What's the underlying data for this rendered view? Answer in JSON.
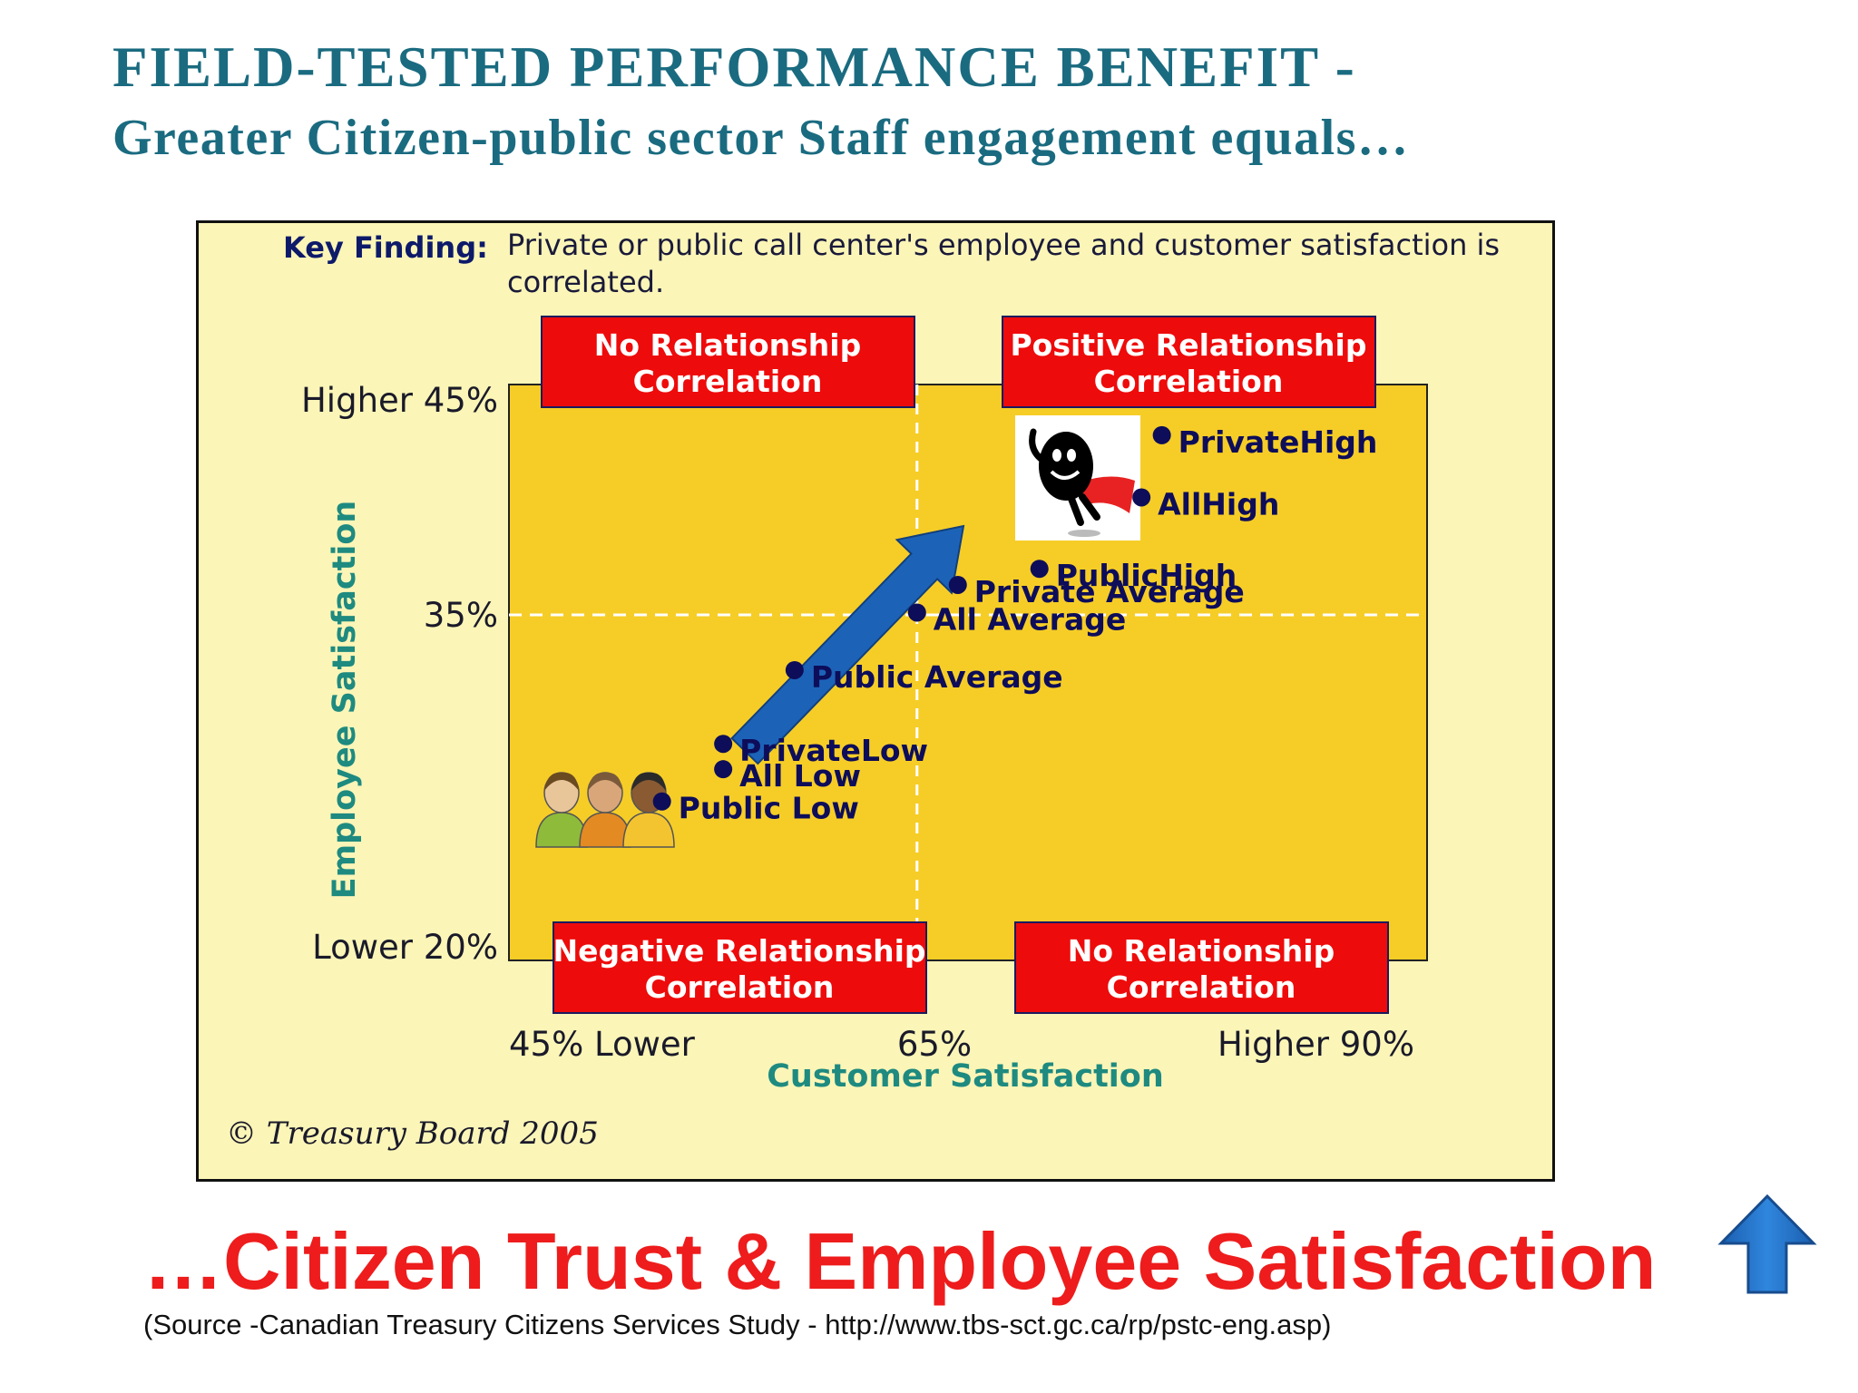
{
  "title": "FIELD-TESTED PERFORMANCE BENEFIT -",
  "subtitle": "Greater Citizen-public sector Staff engagement equals…",
  "bottom_text": "…Citizen Trust & Employee Satisfaction",
  "source": "(Source -Canadian Treasury Citizens Services Study - http://www.tbs-sct.gc.ca/rp/pstc-eng.asp)",
  "colors": {
    "title": "#1a6b80",
    "plot_bg": "#f6cd27",
    "panel_bg": "#fbf5b7",
    "quadrant_box": "#ee0b0b",
    "point": "#0d0d5a",
    "arrow": "#1c63b8",
    "axis_label": "#1e8a80",
    "bottom_text": "#ee1c1c"
  },
  "icons": [
    "smiley-superhero-icon",
    "three-people-icon",
    "up-arrow-icon",
    "diagonal-arrow-icon"
  ],
  "chart_data": {
    "type": "scatter",
    "key_finding_label": "Key Finding:",
    "key_finding_text": [
      "Private or public call center's employee and customer satisfaction is",
      "correlated."
    ],
    "xlabel": "Customer Satisfaction",
    "ylabel": "Employee Satisfaction",
    "xlim": [
      45,
      90
    ],
    "ylim": [
      20,
      45
    ],
    "x_divider": 65,
    "y_divider": 35,
    "x_tick_labels": [
      {
        "value": 45,
        "text": "45% Lower"
      },
      {
        "value": 65,
        "text": "65%"
      },
      {
        "value": 90,
        "text": "Higher 90%"
      }
    ],
    "y_tick_labels": [
      {
        "value": 45,
        "text": "Higher 45%"
      },
      {
        "value": 35,
        "text": "35%"
      },
      {
        "value": 20,
        "text": "Lower  20%"
      }
    ],
    "quadrant_labels": [
      {
        "text": [
          "No Relationship",
          "Correlation"
        ],
        "quadrant": "top-left"
      },
      {
        "text": [
          "Positive Relationship",
          "Correlation"
        ],
        "quadrant": "top-right"
      },
      {
        "text": [
          "Negative Relationship",
          "Correlation"
        ],
        "quadrant": "bottom-left"
      },
      {
        "text": [
          "No Relationship",
          "Correlation"
        ],
        "quadrant": "bottom-right"
      }
    ],
    "points": [
      {
        "label": "PrivateHigh",
        "x": 77,
        "y": 42.8
      },
      {
        "label": "AllHigh",
        "x": 76,
        "y": 40.1
      },
      {
        "label": "PublicHigh",
        "x": 71,
        "y": 37.0
      },
      {
        "label": "Private Average",
        "x": 67,
        "y": 36.3
      },
      {
        "label": "All Average",
        "x": 65,
        "y": 35.1
      },
      {
        "label": "Public Average",
        "x": 59,
        "y": 32.6
      },
      {
        "label": "PrivateLow",
        "x": 55.5,
        "y": 29.4
      },
      {
        "label": "All Low",
        "x": 55.5,
        "y": 28.3
      },
      {
        "label": "Public Low",
        "x": 52.5,
        "y": 26.9
      }
    ],
    "grid": false,
    "legend": "none",
    "copyright": "© Treasury Board 2005"
  }
}
